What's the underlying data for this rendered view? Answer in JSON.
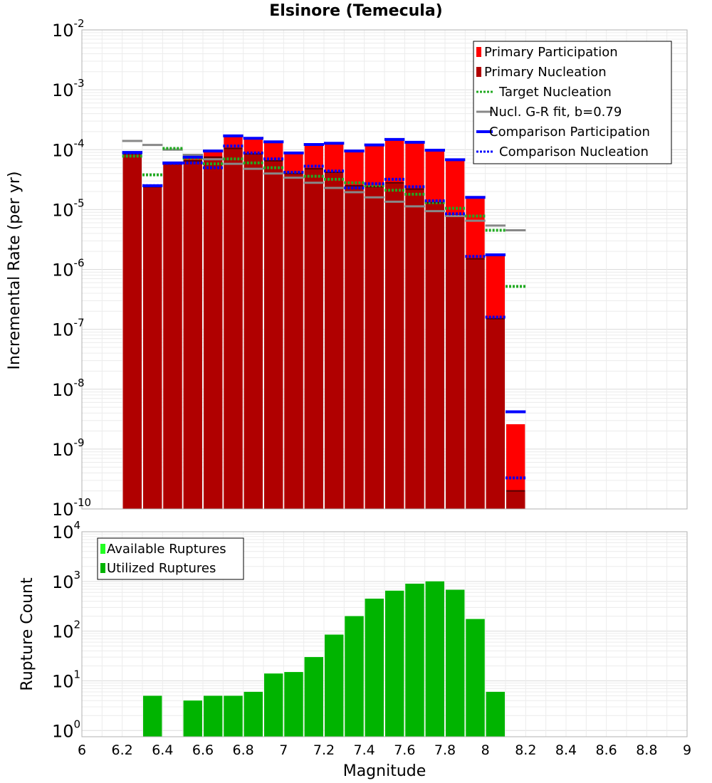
{
  "chart_data": [
    {
      "type": "bar",
      "title": "Elsinore (Temecula)",
      "xlabel": "",
      "ylabel": "Incremental Rate (per yr)",
      "xlim": [
        6,
        9
      ],
      "ylim": [
        1e-10,
        0.01
      ],
      "yscale": "log",
      "grid": true,
      "legend_position": "top-right",
      "y_ticks": [
        {
          "base": "10",
          "exp": "-10",
          "value": 1e-10
        },
        {
          "base": "10",
          "exp": "-9",
          "value": 1e-09
        },
        {
          "base": "10",
          "exp": "-8",
          "value": 1e-08
        },
        {
          "base": "10",
          "exp": "-7",
          "value": 1e-07
        },
        {
          "base": "10",
          "exp": "-6",
          "value": 1e-06
        },
        {
          "base": "10",
          "exp": "-5",
          "value": 1e-05
        },
        {
          "base": "10",
          "exp": "-4",
          "value": 0.0001
        },
        {
          "base": "10",
          "exp": "-3",
          "value": 0.001
        },
        {
          "base": "10",
          "exp": "-2",
          "value": 0.01
        }
      ],
      "x": [
        6.25,
        6.35,
        6.45,
        6.55,
        6.65,
        6.75,
        6.85,
        6.95,
        7.05,
        7.15,
        7.25,
        7.35,
        7.45,
        7.55,
        7.65,
        7.75,
        7.85,
        7.95,
        8.05,
        8.15
      ],
      "series": [
        {
          "name": "Primary Participation",
          "color": "#ff0000",
          "style": "bar",
          "values": [
            8.8e-05,
            2.4e-05,
            5.8e-05,
            7.2e-05,
            9.2e-05,
            0.000165,
            0.00015,
            0.00013,
            8.5e-05,
            0.00012,
            0.000125,
            9.2e-05,
            0.000118,
            0.000145,
            0.00013,
            9.5e-05,
            6.5e-05,
            1.55e-05,
            1.7e-06,
            2.6e-09
          ]
        },
        {
          "name": "Primary Nucleation",
          "color": "#b00000",
          "style": "bar",
          "values": [
            8.6e-05,
            2.4e-05,
            5.8e-05,
            6.5e-05,
            7.5e-05,
            0.000105,
            8.5e-05,
            6.5e-05,
            4e-05,
            4.8e-05,
            4.2e-05,
            2.5e-05,
            2.4e-05,
            2.8e-05,
            2.2e-05,
            1.3e-05,
            8e-06,
            1.5e-06,
            1.5e-07,
            2e-10
          ]
        },
        {
          "name": "Target Nucleation",
          "color": "#22aa22",
          "style": "dotted",
          "values": [
            7.8e-05,
            3.8e-05,
            0.000105,
            7.2e-05,
            5.8e-05,
            7e-05,
            6e-05,
            5e-05,
            4.2e-05,
            3.6e-05,
            3.2e-05,
            2.8e-05,
            2.5e-05,
            2.1e-05,
            1.8e-05,
            1.3e-05,
            1.05e-05,
            7.8e-06,
            4.5e-06,
            5.2e-07
          ]
        },
        {
          "name": "Nucl. G-R fit, b=0.79",
          "color": "#888888",
          "style": "solid",
          "values": [
            0.00014,
            0.00012,
            0.0001,
            8.2e-05,
            6.9e-05,
            5.8e-05,
            4.8e-05,
            4e-05,
            3.4e-05,
            2.8e-05,
            2.3e-05,
            1.95e-05,
            1.6e-05,
            1.35e-05,
            1.13e-05,
            9.4e-06,
            7.8e-06,
            6.5e-06,
            5.4e-06,
            4.5e-06
          ]
        },
        {
          "name": "Comparison Participation",
          "color": "#0000ff",
          "style": "solid-thick",
          "values": [
            9e-05,
            2.5e-05,
            6e-05,
            7.5e-05,
            9.5e-05,
            0.00017,
            0.000155,
            0.000135,
            8.8e-05,
            0.000122,
            0.000128,
            9.5e-05,
            0.00012,
            0.000148,
            0.000133,
            9.8e-05,
            6.8e-05,
            1.6e-05,
            1.75e-06,
            4.2e-09
          ]
        },
        {
          "name": "Comparison Nucleation",
          "color": "#0000ff",
          "style": "dotted",
          "values": [
            8.8e-05,
            2.5e-05,
            5.9e-05,
            6e-05,
            5e-05,
            0.000115,
            8.8e-05,
            7e-05,
            4.2e-05,
            5.3e-05,
            4.4e-05,
            2.3e-05,
            2.7e-05,
            3.2e-05,
            2.4e-05,
            1.4e-05,
            8.5e-06,
            1.65e-06,
            1.6e-07,
            3.3e-10
          ]
        }
      ]
    },
    {
      "type": "bar",
      "title": "",
      "xlabel": "Magnitude",
      "ylabel": "Rupture Count",
      "xlim": [
        6,
        9
      ],
      "ylim": [
        0.75,
        10000.0
      ],
      "yscale": "log",
      "grid": true,
      "legend_position": "top-left",
      "y_ticks": [
        {
          "base": "10",
          "exp": "0",
          "value": 1
        },
        {
          "base": "10",
          "exp": "1",
          "value": 10
        },
        {
          "base": "10",
          "exp": "2",
          "value": 100
        },
        {
          "base": "10",
          "exp": "3",
          "value": 1000
        },
        {
          "base": "10",
          "exp": "4",
          "value": 10000
        }
      ],
      "x_ticks": [
        "6",
        "6.2",
        "6.4",
        "6.6",
        "6.8",
        "7",
        "7.2",
        "7.4",
        "7.6",
        "7.8",
        "8",
        "8.2",
        "8.4",
        "8.6",
        "8.8",
        "9"
      ],
      "x": [
        6.35,
        6.55,
        6.65,
        6.75,
        6.85,
        6.95,
        7.05,
        7.15,
        7.25,
        7.35,
        7.45,
        7.55,
        7.65,
        7.75,
        7.85,
        7.95,
        8.05
      ],
      "series": [
        {
          "name": "Available Ruptures",
          "color": "#22ff22",
          "values": [
            5,
            4,
            5,
            5,
            6,
            14,
            15,
            30,
            85,
            200,
            450,
            650,
            900,
            1000,
            680,
            175,
            6
          ]
        },
        {
          "name": "Utilized Ruptures",
          "color": "#00b400",
          "values": [
            5,
            4,
            5,
            5,
            6,
            14,
            15,
            30,
            85,
            200,
            450,
            650,
            900,
            1000,
            680,
            175,
            6
          ]
        }
      ]
    }
  ]
}
